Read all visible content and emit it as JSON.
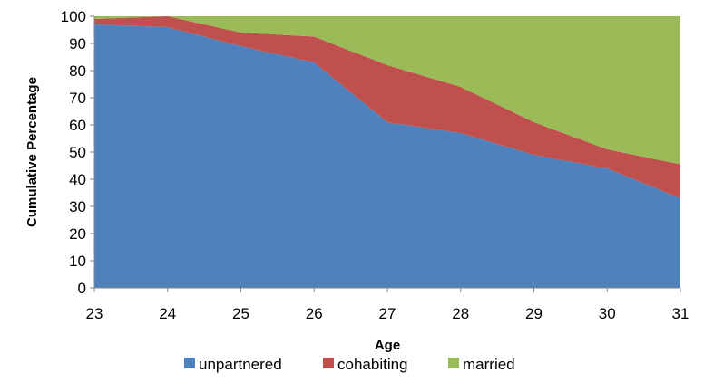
{
  "chart_data": {
    "type": "area",
    "stacked": true,
    "x": [
      23,
      24,
      25,
      26,
      27,
      28,
      29,
      30,
      31
    ],
    "xlabel": "Age",
    "ylabel": "Cumulative Percentage",
    "ylim": [
      0,
      100
    ],
    "yticks": [
      0,
      10,
      20,
      30,
      40,
      50,
      60,
      70,
      80,
      90,
      100
    ],
    "grid": false,
    "legend_position": "bottom",
    "series": [
      {
        "name": "unpartnered",
        "color": "#4F81BD",
        "values": [
          97,
          96,
          89,
          83,
          61,
          57,
          49,
          44,
          33
        ]
      },
      {
        "name": "cohabiting",
        "color": "#C0504D",
        "values": [
          2,
          4,
          5,
          9.5,
          21,
          17,
          12,
          7,
          12.5
        ]
      },
      {
        "name": "married",
        "color": "#9BBB59",
        "values": [
          1,
          0,
          6,
          7.5,
          18,
          26,
          39,
          49,
          54.5
        ]
      }
    ]
  }
}
